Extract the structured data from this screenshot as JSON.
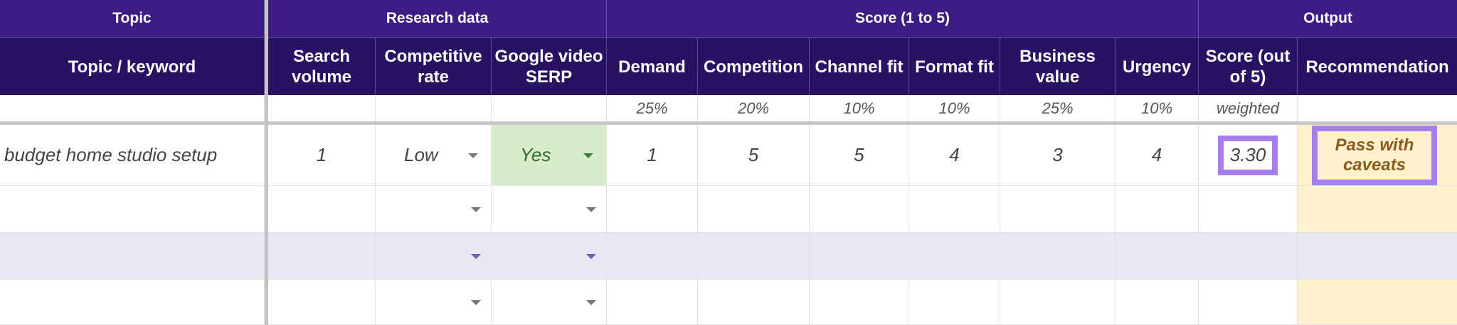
{
  "groups": {
    "topic": "Topic",
    "research": "Research data",
    "score": "Score (1 to 5)",
    "output": "Output"
  },
  "headers": {
    "topic_keyword": "Topic / keyword",
    "search_volume": "Search volume",
    "competitive_rate": "Competitive rate",
    "google_video_serp": "Google video SERP",
    "demand": "Demand",
    "competition": "Competition",
    "channel_fit": "Channel fit",
    "format_fit": "Format fit",
    "business_value": "Business value",
    "urgency": "Urgency",
    "score_out_of_5": "Score (out of 5)",
    "recommendation": "Recommendation"
  },
  "weights": {
    "demand": "25%",
    "competition": "20%",
    "channel_fit": "10%",
    "format_fit": "10%",
    "business_value": "25%",
    "urgency": "10%",
    "score": "weighted"
  },
  "rows": [
    {
      "topic": "budget home studio setup",
      "search_volume": "1",
      "competitive_rate": "Low",
      "google_video_serp": "Yes",
      "demand": "1",
      "competition": "5",
      "channel_fit": "5",
      "format_fit": "4",
      "business_value": "3",
      "urgency": "4",
      "score": "3.30",
      "recommendation": "Pass with caveats"
    }
  ],
  "colors": {
    "group_header_bg": "#3d1d84",
    "column_header_bg": "#2a1263",
    "yes_fill": "#d8ecc9",
    "output_fill": "#fff2cc",
    "highlight_border": "#a77ef0",
    "banded_row": "#e9e6f3"
  },
  "icons": {
    "dropdown": "chevron-down-icon"
  }
}
